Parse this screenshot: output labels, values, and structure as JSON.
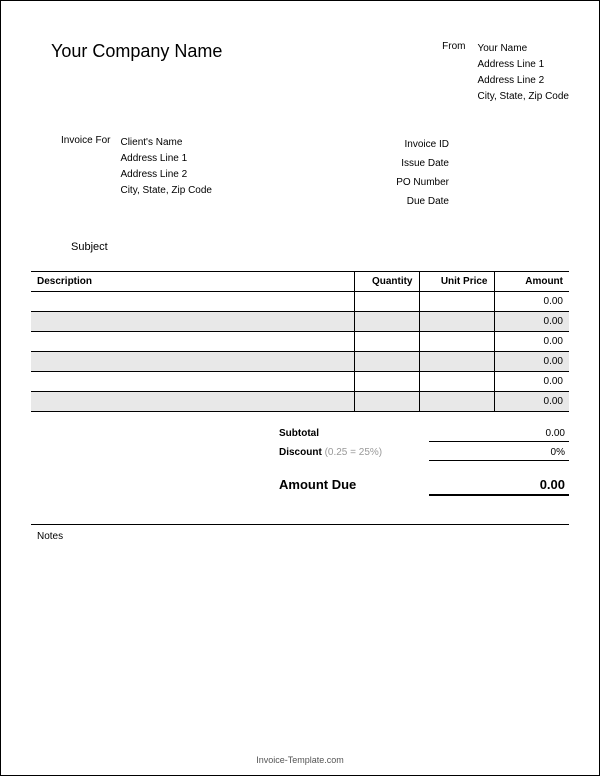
{
  "company_name": "Your Company Name",
  "from": {
    "label": "From",
    "name": "Your Name",
    "address1": "Address Line 1",
    "address2": "Address Line 2",
    "city_state_zip": "City, State, Zip Code"
  },
  "invoice_for": {
    "label": "Invoice For",
    "client_name": "Client's Name",
    "address1": "Address Line 1",
    "address2": "Address Line 2",
    "city_state_zip": "City, State, Zip Code"
  },
  "meta_labels": {
    "invoice_id": "Invoice ID",
    "issue_date": "Issue Date",
    "po_number": "PO Number",
    "due_date": "Due Date"
  },
  "subject_label": "Subject",
  "table": {
    "columns": {
      "description": "Description",
      "quantity": "Quantity",
      "unit_price": "Unit Price",
      "amount": "Amount"
    },
    "rows": [
      {
        "shaded": false,
        "amount": "0.00"
      },
      {
        "shaded": true,
        "amount": "0.00"
      },
      {
        "shaded": false,
        "amount": "0.00"
      },
      {
        "shaded": true,
        "amount": "0.00"
      },
      {
        "shaded": false,
        "amount": "0.00"
      },
      {
        "shaded": true,
        "amount": "0.00"
      }
    ]
  },
  "totals": {
    "subtotal_label": "Subtotal",
    "subtotal_value": "0.00",
    "discount_label": "Discount",
    "discount_hint": "(0.25 = 25%)",
    "discount_value": "0%",
    "amount_due_label": "Amount Due",
    "amount_due_value": "0.00"
  },
  "notes_label": "Notes",
  "footer": "Invoice-Template.com",
  "colors": {
    "border": "#000000",
    "shaded_row": "#e8e8e8",
    "hint_text": "#999999",
    "footer_text": "#555555",
    "background": "#ffffff"
  },
  "typography": {
    "company_name_fontsize": 18,
    "body_fontsize": 10,
    "amount_due_fontsize": 13,
    "footer_fontsize": 9
  }
}
